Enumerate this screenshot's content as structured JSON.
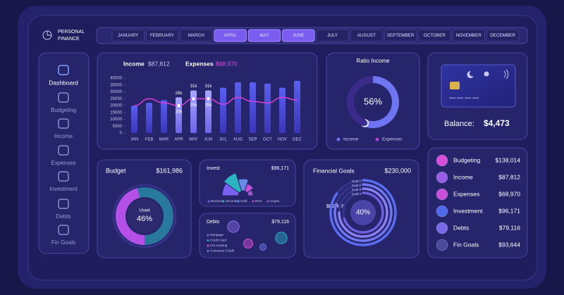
{
  "logo": {
    "lines": [
      "PERSONAL",
      "FINANCE"
    ]
  },
  "months": [
    {
      "label": "JANUARY",
      "selected": false
    },
    {
      "label": "FEBRUARY",
      "selected": false
    },
    {
      "label": "MARCH",
      "selected": false
    },
    {
      "label": "APRIL",
      "selected": true
    },
    {
      "label": "MAY",
      "selected": true
    },
    {
      "label": "JUNE",
      "selected": true
    },
    {
      "label": "JULY",
      "selected": false
    },
    {
      "label": "AUGUST",
      "selected": false
    },
    {
      "label": "SEPTEMBER",
      "selected": false
    },
    {
      "label": "OCTOBER",
      "selected": false
    },
    {
      "label": "NOVEMBER",
      "selected": false
    },
    {
      "label": "DECEMBER",
      "selected": false
    }
  ],
  "sidebar": [
    {
      "label": "Dashboard",
      "active": true
    },
    {
      "label": "Budgeting",
      "active": false
    },
    {
      "label": "Income",
      "active": false
    },
    {
      "label": "Expenses",
      "active": false
    },
    {
      "label": "Investment",
      "active": false
    },
    {
      "label": "Debts",
      "active": false
    },
    {
      "label": "Fin Goals",
      "active": false
    }
  ],
  "income_panel": {
    "totals": [
      "$87,812",
      "$68,970"
    ],
    "chart_data": {
      "type": "bar",
      "categories": [
        "JAN",
        "FEB",
        "MAR",
        "APR",
        "MAY",
        "JUN",
        "JUL",
        "AUG",
        "SEP",
        "OCT",
        "NOV",
        "DEC"
      ],
      "ylim": [
        0,
        40000
      ],
      "yticks": [
        0,
        5000,
        10000,
        15000,
        20000,
        25000,
        30000,
        35000,
        40000
      ],
      "series": [
        {
          "name": "Income",
          "kind": "bar",
          "color": "#4b4fe0",
          "values": [
            20000,
            22000,
            24000,
            26000,
            31000,
            31000,
            33000,
            37000,
            37000,
            36000,
            33000,
            38000
          ],
          "value_labels": [
            null,
            null,
            null,
            "26k",
            "31k",
            "31k",
            null,
            null,
            null,
            null,
            null,
            null
          ]
        },
        {
          "name": "Expenses",
          "kind": "line",
          "color": "#d93fd4",
          "values": [
            20000,
            25000,
            22000,
            20000,
            25000,
            25000,
            21000,
            26000,
            23000,
            22000,
            26000,
            24000
          ],
          "value_labels": [
            null,
            null,
            null,
            "20k",
            "25k",
            "25k",
            null,
            null,
            null,
            null,
            null,
            null
          ]
        }
      ]
    }
  },
  "ratio_income": {
    "title": "Ratio Income",
    "chart_data": {
      "type": "donut",
      "categories": [
        "Income",
        "Expenses"
      ],
      "values": [
        56,
        44
      ],
      "value_labels": [
        "56%",
        null
      ],
      "colors": [
        "#6f74f0",
        "#3a2a8a"
      ]
    }
  },
  "card": {
    "number": "**** **** **** ****",
    "balance_label": "Balance:",
    "balance": "$4,473"
  },
  "budget": {
    "title": "Budget",
    "total": "$161,986",
    "chart_data": {
      "type": "donut",
      "center_label": "Used",
      "values": [
        46
      ],
      "value_labels": [
        "46%"
      ],
      "color": "#b44fe8"
    }
  },
  "invest": {
    "title": "Invest",
    "total": "$96,171",
    "chart_data": {
      "type": "polar",
      "categories": [
        "Business",
        "Securities",
        "Gold",
        "Rent",
        "Crypto"
      ],
      "values": [
        30,
        34,
        24,
        18,
        14
      ],
      "colors": [
        "#7b5ff0",
        "#2bb3c0",
        "#6a8ae8",
        "#c44fd8",
        "#9b59d0"
      ]
    }
  },
  "debts": {
    "title": "Debts",
    "total": "$79,116",
    "chart_data": {
      "type": "bubble",
      "categories": [
        "Mortgage",
        "Credit Card",
        "Car Leasing",
        "Consumer Credit"
      ],
      "values": [
        40,
        40,
        25,
        12
      ],
      "colors": [
        "#8a6de8",
        "#2bb3c0",
        "#d94fd8",
        "#6a7ae8"
      ]
    }
  },
  "goals": {
    "title": "Financial Goals",
    "total": "$230,000",
    "achieved": "$82,458",
    "progress_label": "40%",
    "chart_data": {
      "type": "radial_bar",
      "categories": [
        "Goal 1",
        "Goal 2",
        "Goal 3",
        "Goal 4"
      ],
      "values": [
        85,
        80,
        75,
        70
      ],
      "colors": [
        "#5a6cf0",
        "#6f78f0",
        "#8a7ff0",
        "#7060e0"
      ]
    }
  },
  "summary": [
    {
      "label": "Budgeting",
      "amount": "$138,014",
      "color": "#d84fd8"
    },
    {
      "label": "Income",
      "amount": "$87,812",
      "color": "#9b5de5"
    },
    {
      "label": "Expenses",
      "amount": "$68,970",
      "color": "#c94fd8"
    },
    {
      "label": "Investment",
      "amount": "$96,171",
      "color": "#4f6ae8"
    },
    {
      "label": "Debts",
      "amount": "$79,116",
      "color": "#7a6ae8"
    },
    {
      "label": "Fin Goals",
      "amount": "$93,644",
      "color": "#4a4a9a"
    }
  ]
}
